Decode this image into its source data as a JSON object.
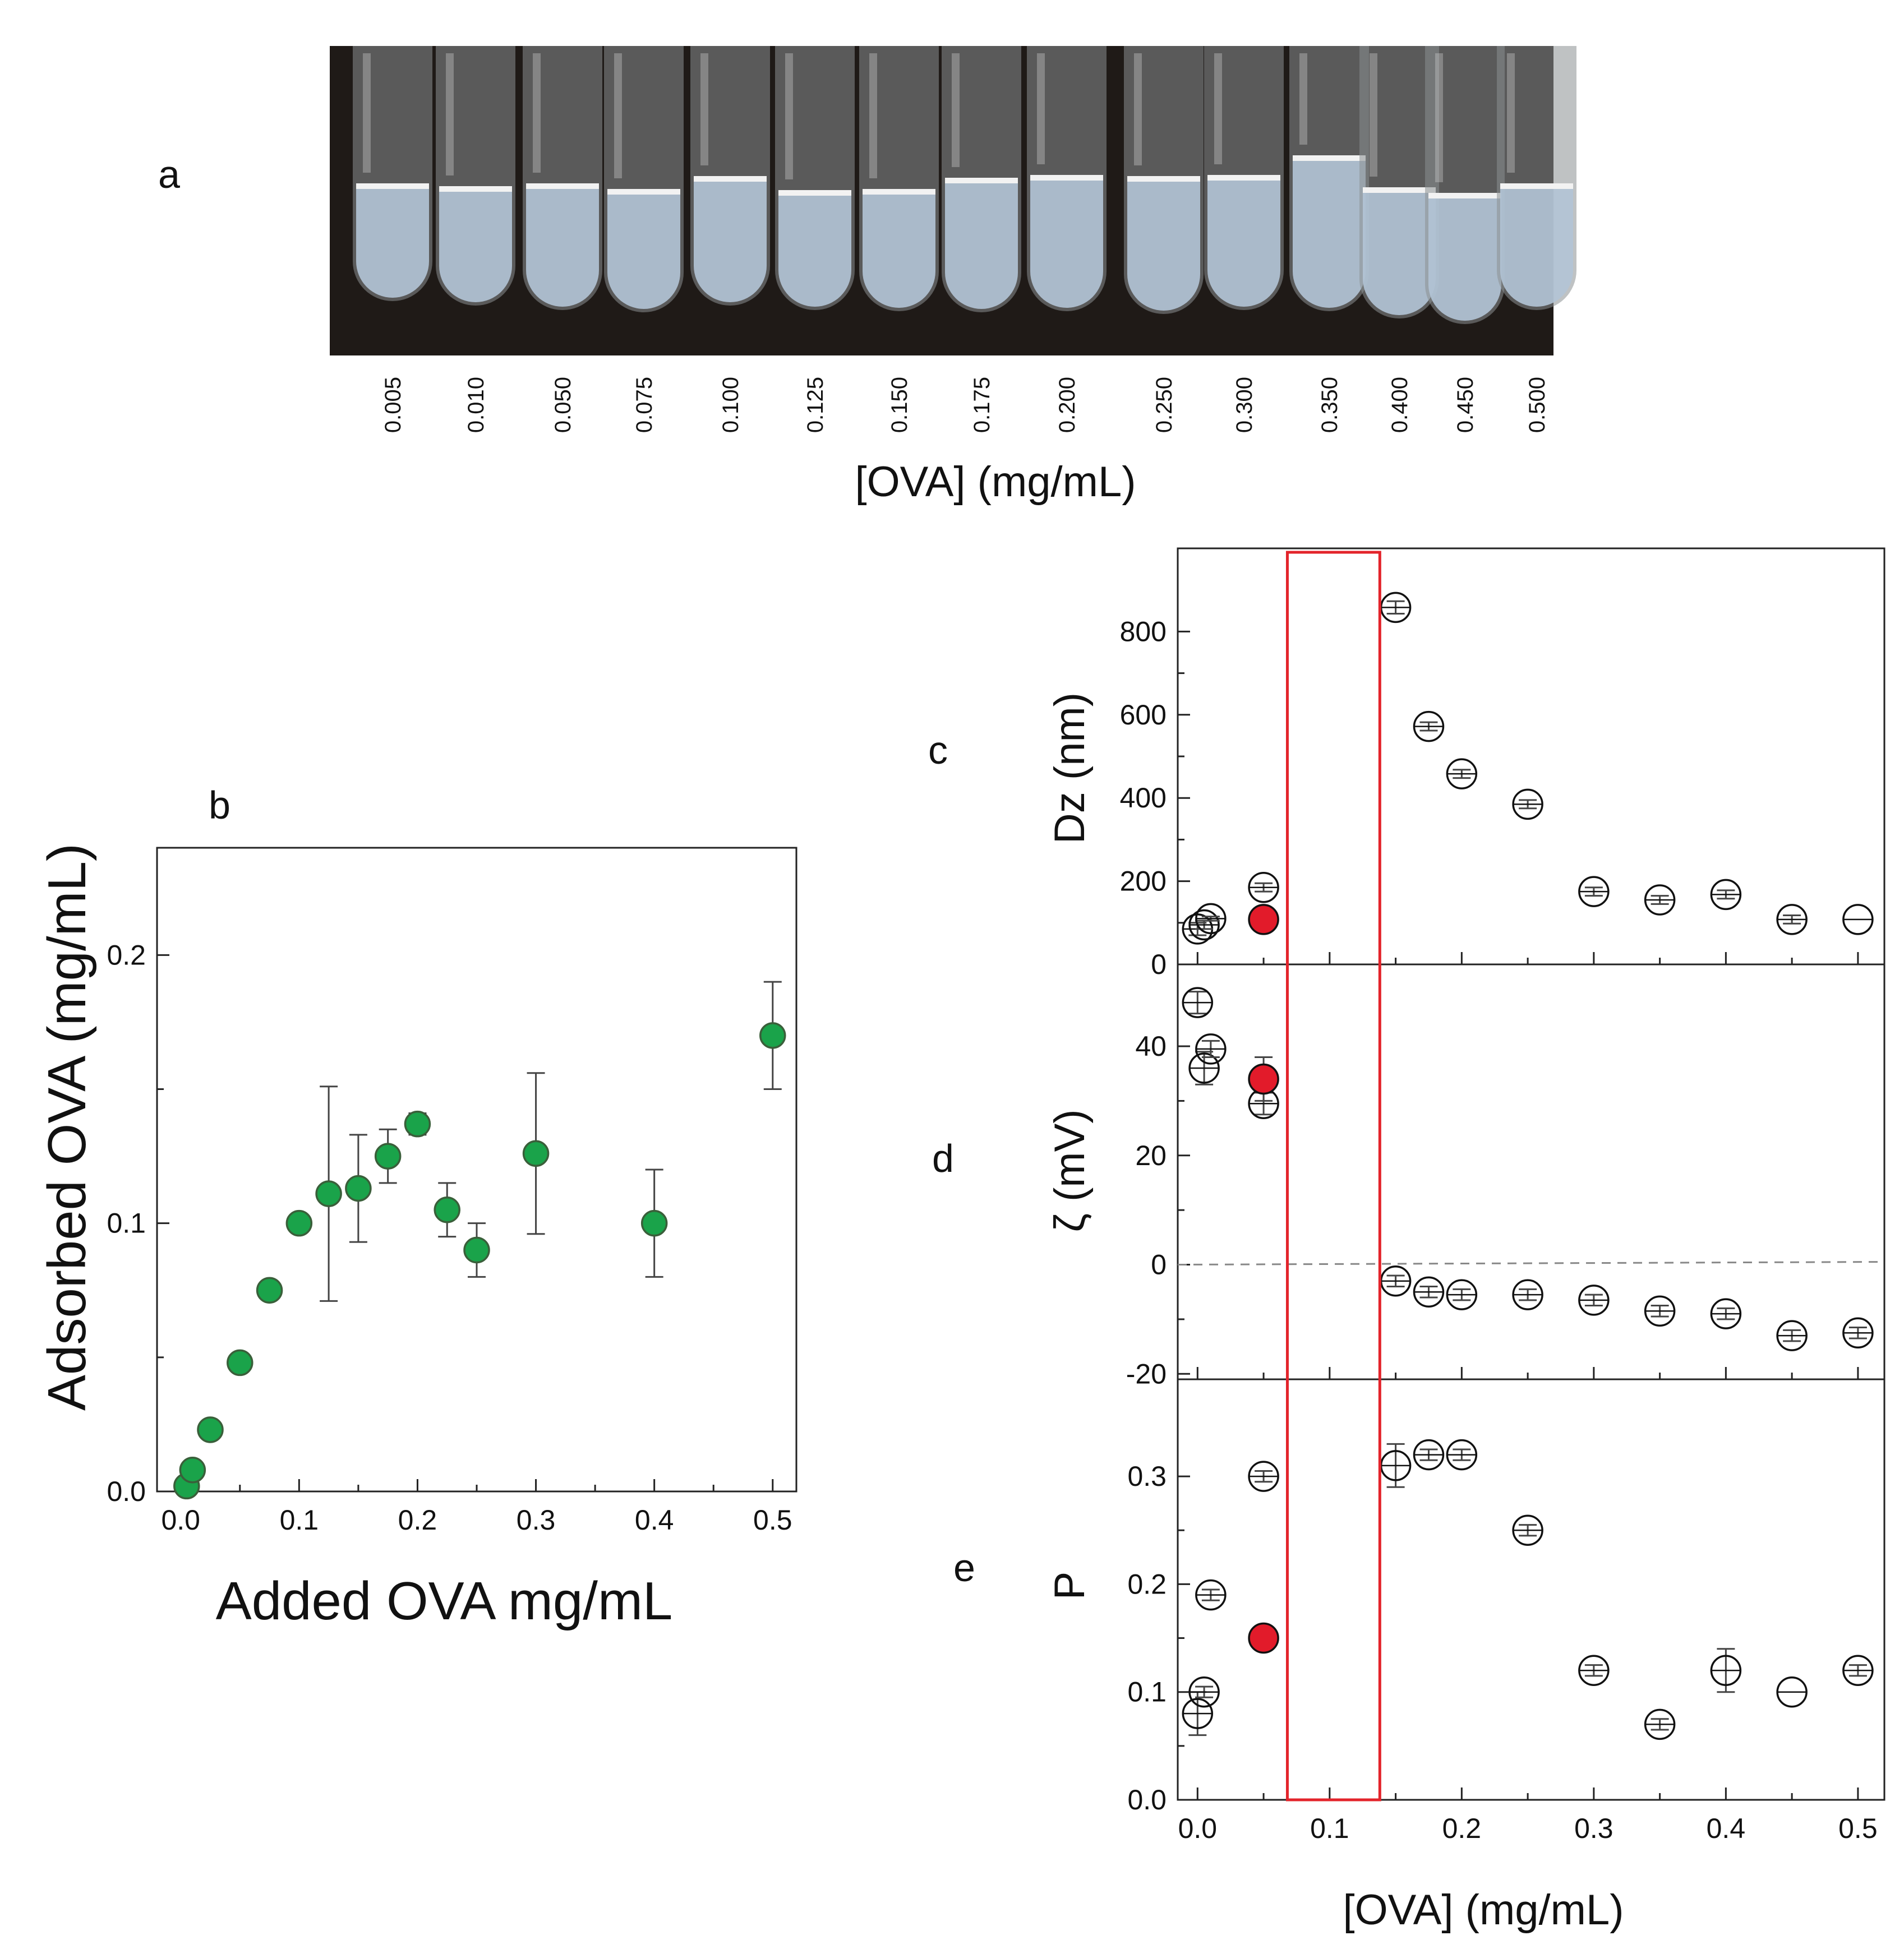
{
  "colors": {
    "green_marker": "#1aa34a",
    "red_marker": "#e21b2a",
    "red_box": "#e3242b",
    "photo_background": "#1f1a17",
    "tube_liquid": "#b3c4d6"
  },
  "panel_a": {
    "letter": "a",
    "xlabel": "[OVA] (mg/mL)",
    "tube_labels": [
      "0.005",
      "0.010",
      "0.050",
      "0.075",
      "0.100",
      "0.125",
      "0.150",
      "0.175",
      "0.200",
      "0.250",
      "0.300",
      "0.350",
      "0.400",
      "0.450",
      "0.500"
    ]
  },
  "chart_data": [
    {
      "id": "b",
      "type": "scatter",
      "letter": "b",
      "xlabel": "Added OVA mg/mL",
      "ylabel": "Adsorbed OVA (mg/mL)",
      "xlim": [
        -0.02,
        0.52
      ],
      "ylim": [
        0.0,
        0.24
      ],
      "xticks": [
        0.0,
        0.1,
        0.2,
        0.3,
        0.4,
        0.5
      ],
      "xtick_labels": [
        "0.0",
        "0.1",
        "0.2",
        "0.3",
        "0.4",
        "0.5"
      ],
      "yticks": [
        0.0,
        0.1,
        0.2
      ],
      "ytick_labels": [
        "0.0",
        "0.1",
        "0.2"
      ],
      "series": [
        {
          "name": "adsorbed",
          "marker": "filled-green",
          "points": [
            {
              "x": 0.005,
              "y": 0.002,
              "err": 0
            },
            {
              "x": 0.01,
              "y": 0.008,
              "err": 0
            },
            {
              "x": 0.025,
              "y": 0.023,
              "err": 0
            },
            {
              "x": 0.05,
              "y": 0.048,
              "err": 0
            },
            {
              "x": 0.075,
              "y": 0.075,
              "err": 0
            },
            {
              "x": 0.1,
              "y": 0.1,
              "err": 0
            },
            {
              "x": 0.125,
              "y": 0.111,
              "err": 0.04
            },
            {
              "x": 0.15,
              "y": 0.113,
              "err": 0.02
            },
            {
              "x": 0.175,
              "y": 0.125,
              "err": 0.01
            },
            {
              "x": 0.2,
              "y": 0.137,
              "err": 0.004
            },
            {
              "x": 0.225,
              "y": 0.105,
              "err": 0.01
            },
            {
              "x": 0.25,
              "y": 0.09,
              "err": 0.01
            },
            {
              "x": 0.3,
              "y": 0.126,
              "err": 0.03
            },
            {
              "x": 0.4,
              "y": 0.1,
              "err": 0.02
            },
            {
              "x": 0.5,
              "y": 0.17,
              "err": 0.02
            }
          ]
        }
      ]
    },
    {
      "id": "c",
      "type": "scatter",
      "letter": "c",
      "ylabel": "Dz (nm)",
      "xlim": [
        -0.015,
        0.52
      ],
      "ylim": [
        0,
        1000
      ],
      "yticks": [
        0,
        200,
        400,
        600,
        800
      ],
      "ytick_labels": [
        "0",
        "200",
        "400",
        "600",
        "800"
      ],
      "series": [
        {
          "name": "open",
          "marker": "open-circle",
          "points": [
            {
              "x": 0.0,
              "y": 85,
              "err": 15
            },
            {
              "x": 0.005,
              "y": 95,
              "err": 10
            },
            {
              "x": 0.01,
              "y": 110,
              "err": 5
            },
            {
              "x": 0.05,
              "y": 185,
              "err": 10
            },
            {
              "x": 0.15,
              "y": 858,
              "err": 15
            },
            {
              "x": 0.175,
              "y": 572,
              "err": 10
            },
            {
              "x": 0.2,
              "y": 458,
              "err": 10
            },
            {
              "x": 0.25,
              "y": 385,
              "err": 10
            },
            {
              "x": 0.3,
              "y": 175,
              "err": 10
            },
            {
              "x": 0.35,
              "y": 155,
              "err": 10
            },
            {
              "x": 0.4,
              "y": 168,
              "err": 10
            },
            {
              "x": 0.45,
              "y": 108,
              "err": 10
            },
            {
              "x": 0.5,
              "y": 108,
              "err": 0
            }
          ]
        },
        {
          "name": "highlight",
          "marker": "filled-red",
          "points": [
            {
              "x": 0.05,
              "y": 108,
              "err": 8
            }
          ]
        }
      ]
    },
    {
      "id": "d",
      "type": "scatter",
      "letter": "d",
      "ylabel": "ζ (mV)",
      "xlim": [
        -0.015,
        0.52
      ],
      "ylim": [
        -21,
        55
      ],
      "yticks": [
        -20,
        0,
        20,
        40
      ],
      "ytick_labels": [
        "-20",
        "0",
        "20",
        "40"
      ],
      "zero_line": true,
      "series": [
        {
          "name": "open",
          "marker": "open-circle",
          "points": [
            {
              "x": 0.0,
              "y": 48,
              "err": 2
            },
            {
              "x": 0.005,
              "y": 36,
              "err": 3
            },
            {
              "x": 0.01,
              "y": 39.5,
              "err": 1.5
            },
            {
              "x": 0.05,
              "y": 29.5,
              "err": 2
            },
            {
              "x": 0.15,
              "y": -3,
              "err": 1
            },
            {
              "x": 0.175,
              "y": -5,
              "err": 1
            },
            {
              "x": 0.2,
              "y": -5.5,
              "err": 1
            },
            {
              "x": 0.25,
              "y": -5.5,
              "err": 1
            },
            {
              "x": 0.3,
              "y": -6.5,
              "err": 1
            },
            {
              "x": 0.35,
              "y": -8.5,
              "err": 1
            },
            {
              "x": 0.4,
              "y": -9,
              "err": 1
            },
            {
              "x": 0.45,
              "y": -13,
              "err": 1
            },
            {
              "x": 0.5,
              "y": -12.5,
              "err": 1
            }
          ]
        },
        {
          "name": "highlight",
          "marker": "filled-red",
          "points": [
            {
              "x": 0.05,
              "y": 34,
              "err": 4
            }
          ]
        }
      ]
    },
    {
      "id": "e",
      "type": "scatter",
      "letter": "e",
      "xlabel": "[OVA] (mg/mL)",
      "ylabel": "P",
      "xlim": [
        -0.015,
        0.52
      ],
      "ylim": [
        0.0,
        0.39
      ],
      "xticks": [
        0.0,
        0.1,
        0.2,
        0.3,
        0.4,
        0.5
      ],
      "xtick_labels": [
        "0.0",
        "0.1",
        "0.2",
        "0.3",
        "0.4",
        "0.5"
      ],
      "yticks": [
        0.0,
        0.1,
        0.2,
        0.3
      ],
      "ytick_labels": [
        "0.0",
        "0.1",
        "0.2",
        "0.3"
      ],
      "series": [
        {
          "name": "open",
          "marker": "open-circle",
          "points": [
            {
              "x": 0.0,
              "y": 0.08,
              "err": 0.02
            },
            {
              "x": 0.005,
              "y": 0.1,
              "err": 0.005
            },
            {
              "x": 0.01,
              "y": 0.19,
              "err": 0.005
            },
            {
              "x": 0.05,
              "y": 0.3,
              "err": 0.005
            },
            {
              "x": 0.15,
              "y": 0.31,
              "err": 0.02
            },
            {
              "x": 0.175,
              "y": 0.32,
              "err": 0.005
            },
            {
              "x": 0.2,
              "y": 0.32,
              "err": 0.005
            },
            {
              "x": 0.25,
              "y": 0.25,
              "err": 0.005
            },
            {
              "x": 0.3,
              "y": 0.12,
              "err": 0.005
            },
            {
              "x": 0.35,
              "y": 0.07,
              "err": 0.005
            },
            {
              "x": 0.4,
              "y": 0.12,
              "err": 0.02
            },
            {
              "x": 0.45,
              "y": 0.1,
              "err": 0
            },
            {
              "x": 0.5,
              "y": 0.12,
              "err": 0.005
            }
          ]
        },
        {
          "name": "highlight",
          "marker": "filled-red",
          "points": [
            {
              "x": 0.05,
              "y": 0.15,
              "err": 0.005
            }
          ]
        }
      ]
    }
  ],
  "highlight_box": {
    "x_from": 0.068,
    "x_to": 0.138
  }
}
